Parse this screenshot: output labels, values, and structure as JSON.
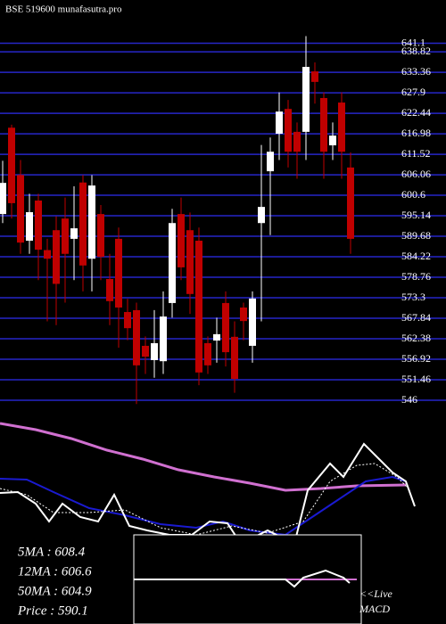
{
  "chart_data": {
    "type": "candlestick",
    "title": "BSE 519600 munafasutra.pro",
    "ylim": [
      546,
      641.1
    ],
    "yticks": [
      641.1,
      638.82,
      633.36,
      627.9,
      622.44,
      616.98,
      611.52,
      606.06,
      600.6,
      595.14,
      589.68,
      584.22,
      578.76,
      573.3,
      567.84,
      562.38,
      556.92,
      551.46,
      546
    ],
    "up_color": "#ffffff",
    "down_color": "#c00000",
    "grid_color": "#2626c8",
    "candles": [
      {
        "open": 595.6,
        "high": 609.8,
        "low": 593.2,
        "close": 603.9
      },
      {
        "open": 618.6,
        "high": 619.4,
        "low": 594.4,
        "close": 598.5
      },
      {
        "open": 606,
        "high": 610,
        "low": 585,
        "close": 588
      },
      {
        "open": 588.5,
        "high": 601,
        "low": 585,
        "close": 596.1
      },
      {
        "open": 599.2,
        "high": 601,
        "low": 578,
        "close": 586.1
      },
      {
        "open": 586,
        "high": 589,
        "low": 567,
        "close": 583.7
      },
      {
        "open": 591.3,
        "high": 595,
        "low": 566,
        "close": 577
      },
      {
        "open": 594.4,
        "high": 600,
        "low": 572,
        "close": 585
      },
      {
        "open": 589,
        "high": 603,
        "low": 578,
        "close": 591.8
      },
      {
        "open": 604,
        "high": 606,
        "low": 575,
        "close": 581.9
      },
      {
        "open": 583.7,
        "high": 606,
        "low": 575,
        "close": 603.2
      },
      {
        "open": 595.6,
        "high": 598,
        "low": 578,
        "close": 584.2
      },
      {
        "open": 578.3,
        "high": 585,
        "low": 566,
        "close": 572.4
      },
      {
        "open": 589,
        "high": 592,
        "low": 560,
        "close": 570.7
      },
      {
        "open": 569.5,
        "high": 573,
        "low": 562,
        "close": 565.2
      },
      {
        "open": 570,
        "high": 572,
        "low": 545,
        "close": 555.3
      },
      {
        "open": 560.5,
        "high": 563,
        "low": 553,
        "close": 557.6
      },
      {
        "open": 556.7,
        "high": 570,
        "low": 552,
        "close": 561.2
      },
      {
        "open": 556.4,
        "high": 575,
        "low": 553,
        "close": 568.3
      },
      {
        "open": 571.9,
        "high": 597,
        "low": 568,
        "close": 593.2
      },
      {
        "open": 595.6,
        "high": 600,
        "low": 578,
        "close": 581.4
      },
      {
        "open": 591.3,
        "high": 596,
        "low": 569,
        "close": 574.3
      },
      {
        "open": 588.5,
        "high": 592,
        "low": 550,
        "close": 553.4
      },
      {
        "open": 561.2,
        "high": 563,
        "low": 553,
        "close": 555.3
      },
      {
        "open": 561.9,
        "high": 568,
        "low": 556,
        "close": 563.6
      },
      {
        "open": 571.9,
        "high": 575,
        "low": 555,
        "close": 558.8
      },
      {
        "open": 562.9,
        "high": 567,
        "low": 548,
        "close": 551.7
      },
      {
        "open": 570.7,
        "high": 572,
        "low": 562,
        "close": 567.1
      },
      {
        "open": 560.5,
        "high": 575,
        "low": 556,
        "close": 573.1
      },
      {
        "open": 593.2,
        "high": 614,
        "low": 567,
        "close": 597.5
      },
      {
        "open": 607,
        "high": 616,
        "low": 590,
        "close": 612.2
      },
      {
        "open": 617,
        "high": 628,
        "low": 610,
        "close": 622.9
      },
      {
        "open": 623.6,
        "high": 626,
        "low": 608,
        "close": 612.2
      },
      {
        "open": 617.5,
        "high": 620,
        "low": 605,
        "close": 612.2
      },
      {
        "open": 617.5,
        "high": 643,
        "low": 610,
        "close": 634.8
      },
      {
        "open": 633.6,
        "high": 636,
        "low": 625,
        "close": 630.8
      },
      {
        "open": 626.5,
        "high": 628,
        "low": 605,
        "close": 612.2
      },
      {
        "open": 613.9,
        "high": 620,
        "low": 610,
        "close": 616.5
      },
      {
        "open": 625.3,
        "high": 628,
        "low": 605,
        "close": 612.2
      },
      {
        "open": 608,
        "high": 612,
        "low": 585,
        "close": 589
      }
    ],
    "info": [
      "5MA : 608.4",
      "12MA : 606.6",
      "50MA : 604.9",
      "Price  : 590.1"
    ],
    "live": "<<Live",
    "macd": "MACD"
  }
}
